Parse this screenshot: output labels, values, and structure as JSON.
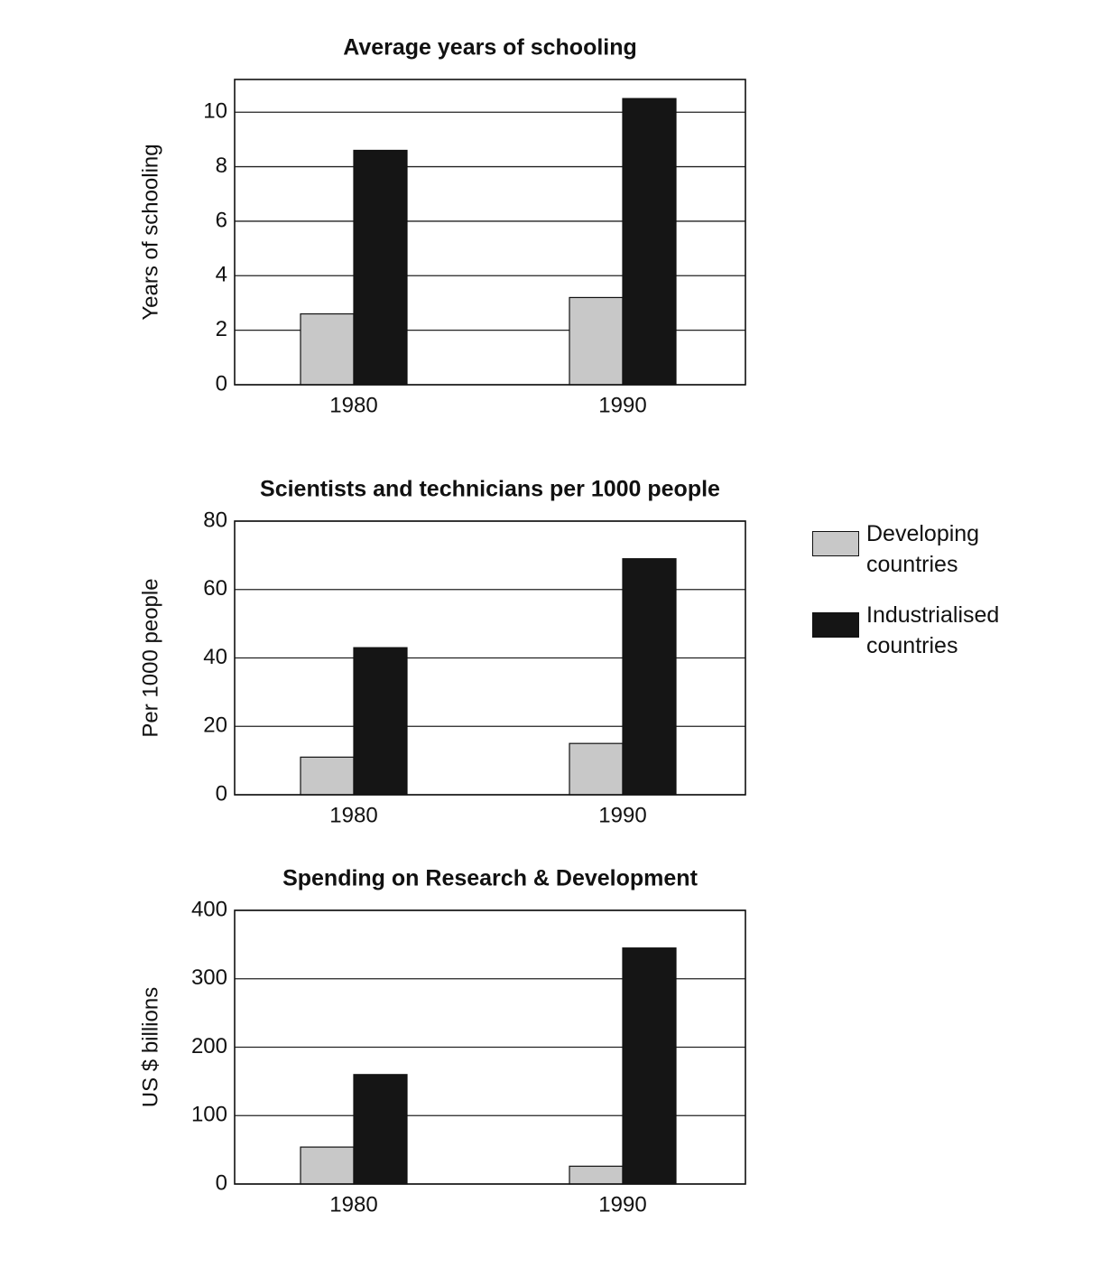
{
  "chart_data": [
    {
      "type": "bar",
      "title": "Average years of schooling",
      "y_label": "Years of schooling",
      "categories": [
        "1980",
        "1990"
      ],
      "series": [
        {
          "color": "#c8c8c8",
          "values": [
            2.6,
            3.2
          ]
        },
        {
          "color": "#151515",
          "values": [
            8.6,
            10.5
          ]
        }
      ],
      "ylim": [
        0,
        11.2
      ],
      "yticks": [
        0,
        2,
        4,
        6,
        8,
        10
      ],
      "grid": true
    },
    {
      "type": "bar",
      "title": "Scientists and technicians per 1000 people",
      "y_label": "Per 1000 people",
      "categories": [
        "1980",
        "1990"
      ],
      "series": [
        {
          "name": "Developing countries",
          "color": "#c8c8c8",
          "values": [
            11,
            15
          ]
        },
        {
          "name": "Industrialised countries",
          "color": "#151515",
          "values": [
            43,
            69
          ]
        }
      ],
      "ylim": [
        0,
        80
      ],
      "yticks": [
        0,
        20,
        40,
        60,
        80
      ],
      "grid": true
    },
    {
      "type": "bar",
      "title": "Spending on Research & Development",
      "y_label": "US $ billions",
      "categories": [
        "1980",
        "1990"
      ],
      "series": [
        {
          "color": "#c8c8c8",
          "values": [
            54,
            26
          ]
        },
        {
          "color": "#151515",
          "values": [
            160,
            345
          ]
        }
      ],
      "ylim": [
        0,
        400
      ],
      "yticks": [
        0,
        100,
        200,
        300,
        400
      ],
      "grid": true
    }
  ]
}
